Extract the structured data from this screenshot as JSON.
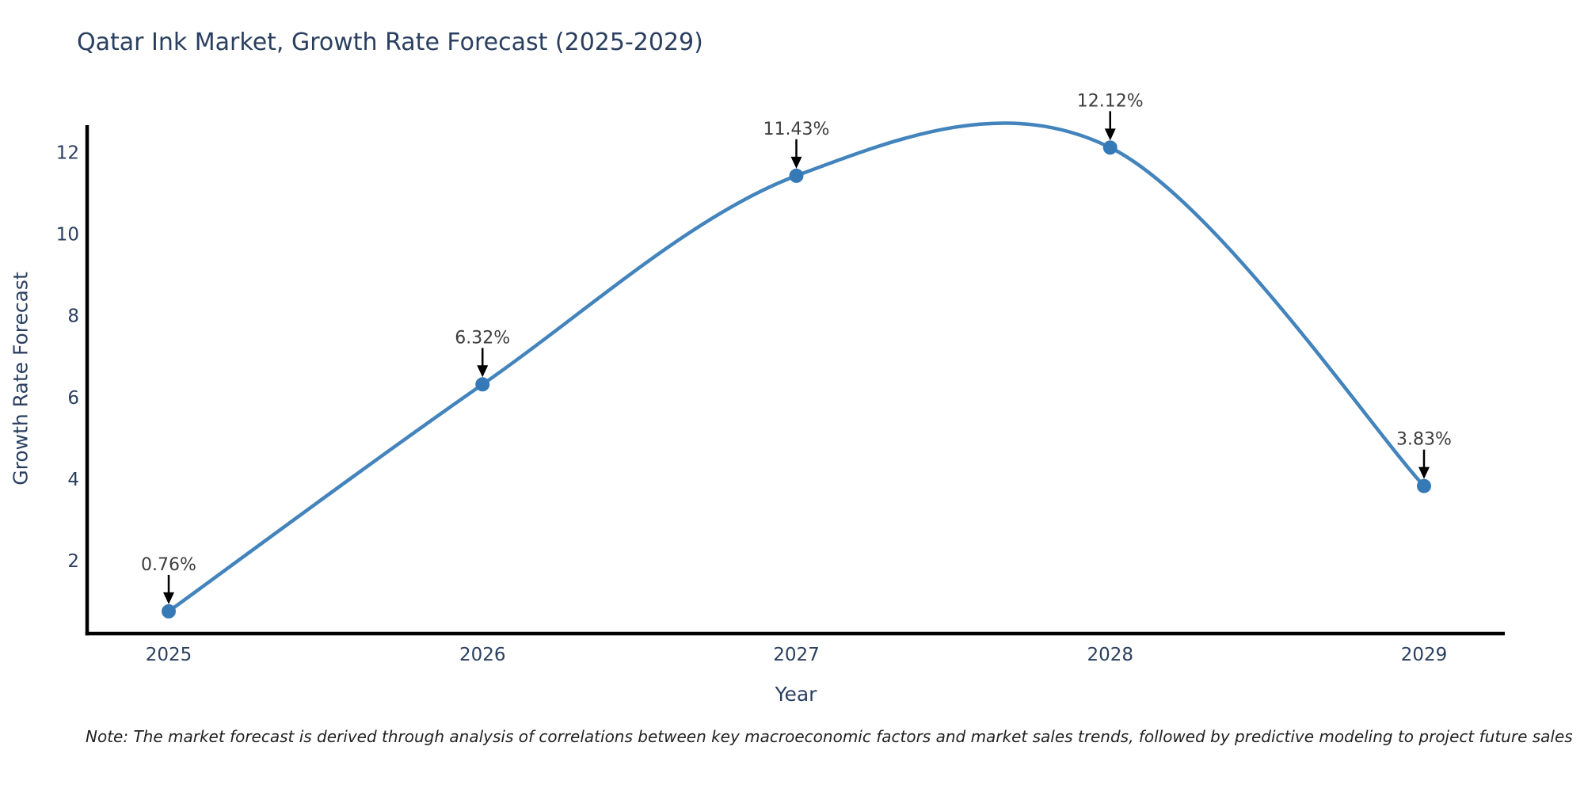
{
  "page": {
    "note": "Note: The market forecast is derived through analysis of correlations between key macroeconomic factors and market sales trends, followed by predictive modeling to project future sales"
  },
  "chart_data": {
    "type": "line",
    "title": "Qatar Ink Market, Growth Rate Forecast (2025-2029)",
    "xlabel": "Year",
    "ylabel": "Growth Rate Forecast",
    "categories": [
      "2025",
      "2026",
      "2027",
      "2028",
      "2029"
    ],
    "values": [
      0.76,
      6.32,
      11.43,
      12.12,
      3.83
    ],
    "point_labels": [
      "0.76%",
      "6.32%",
      "11.43%",
      "12.12%",
      "3.83%"
    ],
    "yticks": [
      2,
      4,
      6,
      8,
      10,
      12
    ],
    "ylim": [
      0.2,
      12.6
    ],
    "grid": false,
    "legend": false,
    "line_style": "smooth-spline",
    "annotation_style": "value-above-with-down-arrow",
    "colors": {
      "line": "#4384bd",
      "marker": "#3579b7",
      "axis": "#000000",
      "axis_text": "#2a3f5f",
      "annotation_text": "#3d3d3d",
      "arrow": "#000000",
      "background": "#ffffff"
    }
  }
}
